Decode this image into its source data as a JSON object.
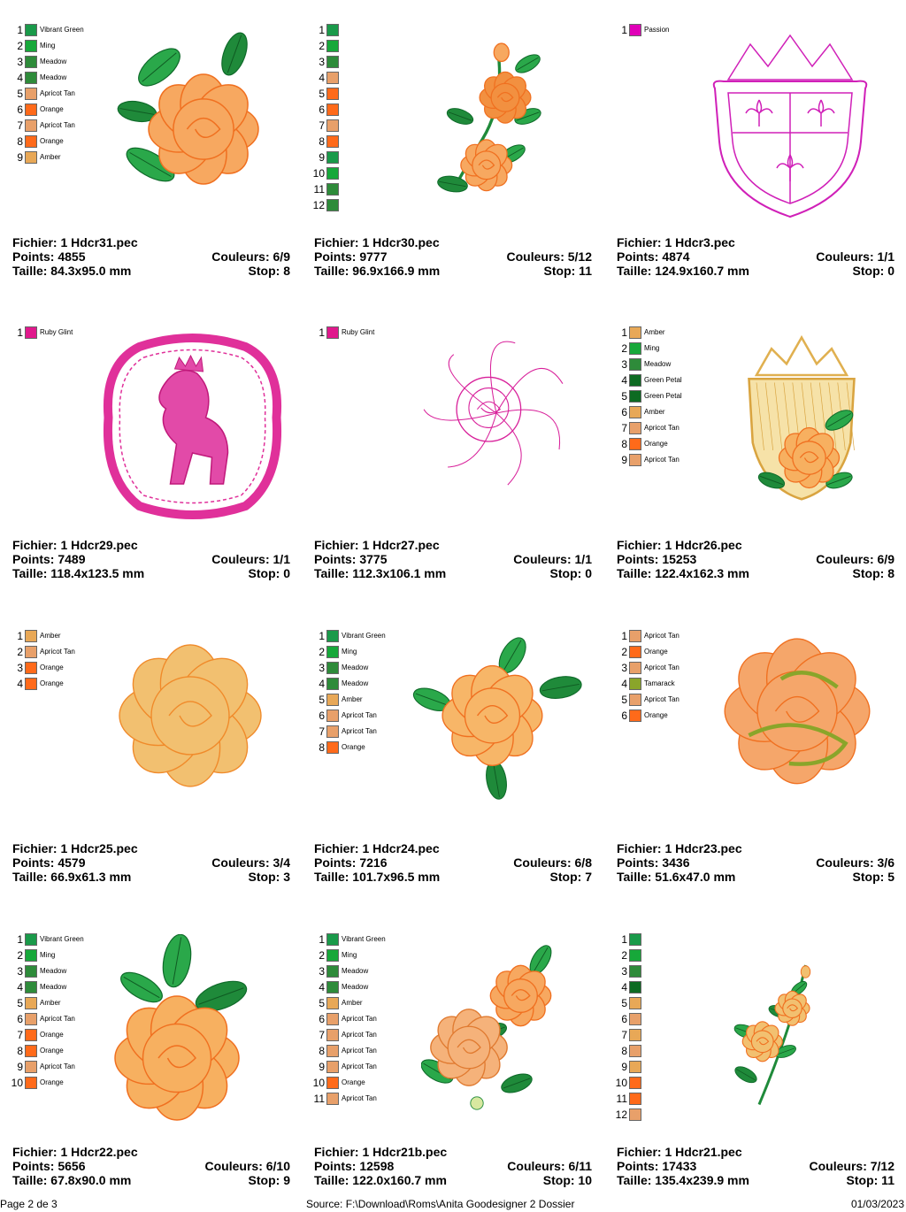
{
  "page": {
    "footer_page": "Page 2 de 3",
    "footer_source": "Source: F:\\Download\\Roms\\Anita Goodesigner 2 Dossier",
    "footer_date": "01/03/2023"
  },
  "colors": {
    "vibrant_green": "#1a9a4a",
    "ming": "#17a83a",
    "meadow": "#2e8b3a",
    "green_petal": "#0d6b22",
    "apricot_tan": "#e8a06a",
    "orange": "#ff6a1a",
    "amber": "#e8a857",
    "passion": "#e000b8",
    "ruby_glint": "#e0188c",
    "tamarack": "#8aa52a"
  },
  "designs": [
    {
      "file": "Fichier: 1 Hdcr31.pec",
      "points": "Points: 4855",
      "colors_label": "Couleurs: 6/9",
      "size": "Taille: 84.3x95.0 mm",
      "stop": "Stop: 8",
      "art": "rose-leaves",
      "legend": [
        {
          "n": "1",
          "name": "Vibrant Green",
          "color": "#1a9a4a"
        },
        {
          "n": "2",
          "name": "Ming",
          "color": "#17a83a"
        },
        {
          "n": "3",
          "name": "Meadow",
          "color": "#2e8b3a"
        },
        {
          "n": "4",
          "name": "Meadow",
          "color": "#2e8b3a"
        },
        {
          "n": "5",
          "name": "Apricot Tan",
          "color": "#e8a06a"
        },
        {
          "n": "6",
          "name": "Orange",
          "color": "#ff6a1a"
        },
        {
          "n": "7",
          "name": "Apricot Tan",
          "color": "#e8a06a"
        },
        {
          "n": "8",
          "name": "Orange",
          "color": "#ff6a1a"
        },
        {
          "n": "9",
          "name": "Amber",
          "color": "#e8a857"
        }
      ]
    },
    {
      "file": "Fichier: 1 Hdcr30.pec",
      "points": "Points: 9777",
      "colors_label": "Couleurs: 5/12",
      "size": "Taille: 96.9x166.9 mm",
      "stop": "Stop: 11",
      "art": "rose-branch",
      "legend": [
        {
          "n": "1",
          "name": "",
          "color": "#1a9a4a"
        },
        {
          "n": "2",
          "name": "",
          "color": "#17a83a"
        },
        {
          "n": "3",
          "name": "",
          "color": "#2e8b3a"
        },
        {
          "n": "4",
          "name": "",
          "color": "#e8a06a"
        },
        {
          "n": "5",
          "name": "",
          "color": "#ff6a1a"
        },
        {
          "n": "6",
          "name": "",
          "color": "#ff6a1a"
        },
        {
          "n": "7",
          "name": "",
          "color": "#e8a06a"
        },
        {
          "n": "8",
          "name": "",
          "color": "#ff6a1a"
        },
        {
          "n": "9",
          "name": "",
          "color": "#1a9a4a"
        },
        {
          "n": "10",
          "name": "",
          "color": "#17a83a"
        },
        {
          "n": "11",
          "name": "",
          "color": "#2e8b3a"
        },
        {
          "n": "12",
          "name": "",
          "color": "#2e8b3a"
        }
      ]
    },
    {
      "file": "Fichier: 1 Hdcr3.pec",
      "points": "Points: 4874",
      "colors_label": "Couleurs: 1/1",
      "size": "Taille: 124.9x160.7 mm",
      "stop": "Stop: 0",
      "art": "crest-outline",
      "legend": [
        {
          "n": "1",
          "name": "Passion",
          "color": "#e000b8"
        }
      ]
    },
    {
      "file": "Fichier: 1 Hdcr29.pec",
      "points": "Points: 7489",
      "colors_label": "Couleurs: 1/1",
      "size": "Taille: 118.4x123.5 mm",
      "stop": "Stop: 0",
      "art": "lion-frame",
      "legend": [
        {
          "n": "1",
          "name": "Ruby Glint",
          "color": "#e0188c"
        }
      ]
    },
    {
      "file": "Fichier: 1 Hdcr27.pec",
      "points": "Points: 3775",
      "colors_label": "Couleurs: 1/1",
      "size": "Taille: 112.3x106.1 mm",
      "stop": "Stop: 0",
      "art": "rose-outline",
      "legend": [
        {
          "n": "1",
          "name": "Ruby Glint",
          "color": "#e0188c"
        }
      ]
    },
    {
      "file": "Fichier: 1 Hdcr26.pec",
      "points": "Points: 15253",
      "colors_label": "Couleurs: 6/9",
      "size": "Taille: 122.4x162.3 mm",
      "stop": "Stop: 8",
      "art": "crown-shield-rose",
      "legend": [
        {
          "n": "1",
          "name": "Amber",
          "color": "#e8a857"
        },
        {
          "n": "2",
          "name": "Ming",
          "color": "#17a83a"
        },
        {
          "n": "3",
          "name": "Meadow",
          "color": "#2e8b3a"
        },
        {
          "n": "4",
          "name": "Green Petal",
          "color": "#0d6b22"
        },
        {
          "n": "5",
          "name": "Green Petal",
          "color": "#0d6b22"
        },
        {
          "n": "6",
          "name": "Amber",
          "color": "#e8a857"
        },
        {
          "n": "7",
          "name": "Apricot Tan",
          "color": "#e8a06a"
        },
        {
          "n": "8",
          "name": "Orange",
          "color": "#ff6a1a"
        },
        {
          "n": "9",
          "name": "Apricot Tan",
          "color": "#e8a06a"
        }
      ]
    },
    {
      "file": "Fichier: 1 Hdcr25.pec",
      "points": "Points: 4579",
      "colors_label": "Couleurs: 3/4",
      "size": "Taille: 66.9x61.3 mm",
      "stop": "Stop: 3",
      "art": "rose-big",
      "legend": [
        {
          "n": "1",
          "name": "Amber",
          "color": "#e8a857"
        },
        {
          "n": "2",
          "name": "Apricot Tan",
          "color": "#e8a06a"
        },
        {
          "n": "3",
          "name": "Orange",
          "color": "#ff6a1a"
        },
        {
          "n": "4",
          "name": "Orange",
          "color": "#ff6a1a"
        }
      ]
    },
    {
      "file": "Fichier: 1 Hdcr24.pec",
      "points": "Points: 7216",
      "colors_label": "Couleurs: 6/8",
      "size": "Taille: 101.7x96.5 mm",
      "stop": "Stop: 7",
      "art": "rose-4leaves",
      "legend": [
        {
          "n": "1",
          "name": "Vibrant Green",
          "color": "#1a9a4a"
        },
        {
          "n": "2",
          "name": "Ming",
          "color": "#17a83a"
        },
        {
          "n": "3",
          "name": "Meadow",
          "color": "#2e8b3a"
        },
        {
          "n": "4",
          "name": "Meadow",
          "color": "#2e8b3a"
        },
        {
          "n": "5",
          "name": "Amber",
          "color": "#e8a857"
        },
        {
          "n": "6",
          "name": "Apricot Tan",
          "color": "#e8a06a"
        },
        {
          "n": "7",
          "name": "Apricot Tan",
          "color": "#e8a06a"
        },
        {
          "n": "8",
          "name": "Orange",
          "color": "#ff6a1a"
        }
      ]
    },
    {
      "file": "Fichier: 1 Hdcr23.pec",
      "points": "Points: 3436",
      "colors_label": "Couleurs: 3/6",
      "size": "Taille: 51.6x47.0 mm",
      "stop": "Stop: 5",
      "art": "rose-tamarack",
      "legend": [
        {
          "n": "1",
          "name": "Apricot Tan",
          "color": "#e8a06a"
        },
        {
          "n": "2",
          "name": "Orange",
          "color": "#ff6a1a"
        },
        {
          "n": "3",
          "name": "Apricot Tan",
          "color": "#e8a06a"
        },
        {
          "n": "4",
          "name": "Tamarack",
          "color": "#8aa52a"
        },
        {
          "n": "5",
          "name": "Apricot Tan",
          "color": "#e8a06a"
        },
        {
          "n": "6",
          "name": "Orange",
          "color": "#ff6a1a"
        }
      ]
    },
    {
      "file": "Fichier: 1 Hdcr22.pec",
      "points": "Points: 5656",
      "colors_label": "Couleurs: 6/10",
      "size": "Taille: 67.8x90.0 mm",
      "stop": "Stop: 9",
      "art": "rose-leaves-top",
      "legend": [
        {
          "n": "1",
          "name": "Vibrant Green",
          "color": "#1a9a4a"
        },
        {
          "n": "2",
          "name": "Ming",
          "color": "#17a83a"
        },
        {
          "n": "3",
          "name": "Meadow",
          "color": "#2e8b3a"
        },
        {
          "n": "4",
          "name": "Meadow",
          "color": "#2e8b3a"
        },
        {
          "n": "5",
          "name": "Amber",
          "color": "#e8a857"
        },
        {
          "n": "6",
          "name": "Apricot Tan",
          "color": "#e8a06a"
        },
        {
          "n": "7",
          "name": "Orange",
          "color": "#ff6a1a"
        },
        {
          "n": "8",
          "name": "Orange",
          "color": "#ff6a1a"
        },
        {
          "n": "9",
          "name": "Apricot Tan",
          "color": "#e8a06a"
        },
        {
          "n": "10",
          "name": "Orange",
          "color": "#ff6a1a"
        }
      ]
    },
    {
      "file": "Fichier: 1 Hdcr21b.pec",
      "points": "Points: 12598",
      "colors_label": "Couleurs: 6/11",
      "size": "Taille: 122.0x160.7 mm",
      "stop": "Stop: 10",
      "art": "two-roses",
      "legend": [
        {
          "n": "1",
          "name": "Vibrant Green",
          "color": "#1a9a4a"
        },
        {
          "n": "2",
          "name": "Ming",
          "color": "#17a83a"
        },
        {
          "n": "3",
          "name": "Meadow",
          "color": "#2e8b3a"
        },
        {
          "n": "4",
          "name": "Meadow",
          "color": "#2e8b3a"
        },
        {
          "n": "5",
          "name": "Amber",
          "color": "#e8a857"
        },
        {
          "n": "6",
          "name": "Apricot Tan",
          "color": "#e8a06a"
        },
        {
          "n": "7",
          "name": "Apricot Tan",
          "color": "#e8a06a"
        },
        {
          "n": "8",
          "name": "Apricot Tan",
          "color": "#e8a06a"
        },
        {
          "n": "9",
          "name": "Apricot Tan",
          "color": "#e8a06a"
        },
        {
          "n": "10",
          "name": "Orange",
          "color": "#ff6a1a"
        },
        {
          "n": "11",
          "name": "Apricot Tan",
          "color": "#e8a06a"
        }
      ]
    },
    {
      "file": "Fichier: 1 Hdcr21.pec",
      "points": "Points: 17433",
      "colors_label": "Couleurs: 7/12",
      "size": "Taille: 135.4x239.9 mm",
      "stop": "Stop: 11",
      "art": "rose-stem",
      "legend": [
        {
          "n": "1",
          "name": "",
          "color": "#1a9a4a"
        },
        {
          "n": "2",
          "name": "",
          "color": "#17a83a"
        },
        {
          "n": "3",
          "name": "",
          "color": "#2e8b3a"
        },
        {
          "n": "4",
          "name": "",
          "color": "#0d6b22"
        },
        {
          "n": "5",
          "name": "",
          "color": "#e8a857"
        },
        {
          "n": "6",
          "name": "",
          "color": "#e8a06a"
        },
        {
          "n": "7",
          "name": "",
          "color": "#e8a857"
        },
        {
          "n": "8",
          "name": "",
          "color": "#e8a06a"
        },
        {
          "n": "9",
          "name": "",
          "color": "#e8a857"
        },
        {
          "n": "10",
          "name": "",
          "color": "#ff6a1a"
        },
        {
          "n": "11",
          "name": "",
          "color": "#ff6a1a"
        },
        {
          "n": "12",
          "name": "",
          "color": "#e8a06a"
        }
      ]
    }
  ]
}
